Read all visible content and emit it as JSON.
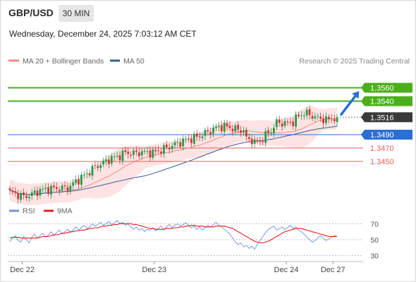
{
  "header": {
    "symbol": "GBP/USD",
    "timeframe": "30 MIN",
    "datetime": "Wednesday, December 24, 2025 7:03:12 AM CET"
  },
  "legend": {
    "ma20_label": "MA 20 + Bollinger Bands",
    "ma50_label": "MA 50",
    "credit": "Research © 2025 Trading Central",
    "rsi_label": "RSI",
    "rsi_ma_label": "9MA"
  },
  "colors": {
    "up_candle": "#1f9c4b",
    "down_candle": "#d03a3a",
    "ma20": "#f08a8a",
    "bollinger_fill": "#fcd9d9",
    "ma50": "#3b5b9a",
    "resistance": "#4caf1a",
    "pivot": "#2a6fd6",
    "support": "#e06060",
    "last_price_bg": "#3a3a3a",
    "rsi_line": "#6f8fe0",
    "rsi_ma_line": "#e11f1f"
  },
  "chart_data": [
    {
      "type": "candlestick",
      "title": "GBP/USD 30 MIN",
      "ylim": [
        1.339,
        1.359
      ],
      "x_ticks": [
        "Dec 22",
        "Dec 23",
        "Dec 24",
        "Dec 27"
      ],
      "x_tick_positions": [
        4.5,
        52.5,
        100.5,
        117.5
      ],
      "bar_count": 120,
      "last_price": "1.3516",
      "price_levels": [
        {
          "label": "1.3560",
          "value": 1.356,
          "kind": "resistance"
        },
        {
          "label": "1.3540",
          "value": 1.354,
          "kind": "resistance"
        },
        {
          "label": "1.3516",
          "value": 1.3516,
          "kind": "last"
        },
        {
          "label": "1.3490",
          "value": 1.349,
          "kind": "pivot"
        },
        {
          "label": "1.3470",
          "value": 1.347,
          "kind": "support"
        },
        {
          "label": "1.3450",
          "value": 1.345,
          "kind": "support"
        }
      ],
      "forecast_arrow": {
        "from_bar": 120,
        "from_price": 1.3516,
        "to_bar": 127,
        "to_price": 1.3555
      },
      "close_anchors": [
        [
          0,
          1.3404
        ],
        [
          3,
          1.34
        ],
        [
          5,
          1.3397
        ],
        [
          8,
          1.3401
        ],
        [
          11,
          1.3407
        ],
        [
          14,
          1.3409
        ],
        [
          18,
          1.341
        ],
        [
          21,
          1.341
        ],
        [
          24,
          1.342
        ],
        [
          28,
          1.3432
        ],
        [
          31,
          1.3442
        ],
        [
          34,
          1.3448
        ],
        [
          37,
          1.3455
        ],
        [
          39,
          1.3457
        ],
        [
          42,
          1.3463
        ],
        [
          45,
          1.3462
        ],
        [
          48,
          1.3464
        ],
        [
          52,
          1.3463
        ],
        [
          55,
          1.3467
        ],
        [
          58,
          1.3472
        ],
        [
          61,
          1.3477
        ],
        [
          64,
          1.3482
        ],
        [
          67,
          1.3485
        ],
        [
          70,
          1.349
        ],
        [
          73,
          1.3496
        ],
        [
          76,
          1.3502
        ],
        [
          79,
          1.3502
        ],
        [
          82,
          1.3498
        ],
        [
          85,
          1.3496
        ],
        [
          86,
          1.3484
        ],
        [
          88,
          1.3482
        ],
        [
          89,
          1.3478
        ],
        [
          91,
          1.348
        ],
        [
          93,
          1.3489
        ],
        [
          95,
          1.3496
        ],
        [
          97,
          1.3508
        ],
        [
          100,
          1.3507
        ],
        [
          103,
          1.3509
        ],
        [
          105,
          1.3518
        ],
        [
          107,
          1.3522
        ],
        [
          109,
          1.352
        ],
        [
          111,
          1.3516
        ],
        [
          113,
          1.3514
        ],
        [
          115,
          1.3512
        ],
        [
          117,
          1.3514
        ],
        [
          119,
          1.3516
        ]
      ]
    },
    {
      "type": "line",
      "title": "RSI",
      "ylim": [
        20,
        80
      ],
      "y_ticks": [
        70,
        50,
        30
      ],
      "series": [
        {
          "name": "RSI",
          "values": [
            48,
            52,
            55,
            49,
            47,
            54,
            50,
            46,
            53,
            57,
            52,
            55,
            58,
            53,
            56,
            60,
            55,
            59,
            62,
            57,
            60,
            63,
            59,
            62,
            66,
            62,
            65,
            68,
            64,
            66,
            70,
            67,
            69,
            72,
            68,
            70,
            73,
            69,
            71,
            74,
            70,
            72,
            68,
            70,
            66,
            63,
            66,
            62,
            64,
            60,
            63,
            62,
            65,
            61,
            64,
            67,
            63,
            66,
            69,
            65,
            68,
            70,
            67,
            69,
            71,
            68,
            65,
            67,
            63,
            66,
            62,
            65,
            68,
            66,
            69,
            72,
            68,
            66,
            63,
            60,
            57,
            52,
            47,
            44,
            46,
            41,
            43,
            39,
            42,
            38,
            44,
            49,
            54,
            59,
            63,
            65,
            67,
            62,
            64,
            66,
            63,
            65,
            68,
            64,
            66,
            62,
            60,
            57,
            53,
            50,
            47,
            49,
            52,
            55,
            52,
            49,
            51,
            53,
            55,
            54
          ]
        },
        {
          "name": "9MA",
          "values": [
            52,
            53,
            53,
            53,
            52,
            52,
            52,
            52,
            52,
            52,
            52,
            53,
            54,
            54,
            54,
            55,
            56,
            56,
            57,
            58,
            58,
            59,
            60,
            60,
            61,
            61,
            62,
            62,
            63,
            64,
            64,
            65,
            65,
            66,
            67,
            67,
            68,
            68,
            69,
            69,
            70,
            70,
            70,
            70,
            70,
            69,
            69,
            68,
            67,
            66,
            65,
            64,
            64,
            63,
            63,
            63,
            63,
            64,
            64,
            64,
            65,
            65,
            66,
            66,
            67,
            67,
            68,
            68,
            67,
            67,
            67,
            66,
            66,
            66,
            66,
            67,
            67,
            67,
            67,
            66,
            65,
            64,
            62,
            60,
            58,
            56,
            54,
            52,
            50,
            48,
            47,
            46,
            46,
            47,
            48,
            50,
            52,
            54,
            56,
            58,
            60,
            61,
            62,
            63,
            64,
            64,
            64,
            63,
            62,
            61,
            60,
            59,
            58,
            57,
            56,
            55,
            54,
            54,
            54,
            54
          ]
        }
      ]
    }
  ]
}
